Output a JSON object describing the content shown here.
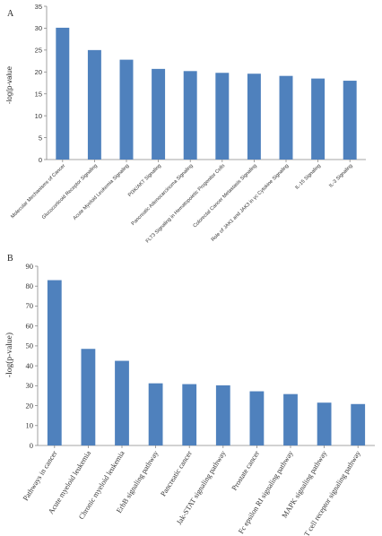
{
  "chart_data": [
    {
      "panel": "A",
      "type": "bar",
      "title": "",
      "xlabel": "",
      "ylabel": "-log(p-value",
      "ylim": [
        0,
        35
      ],
      "yticks": [
        0,
        5,
        10,
        15,
        20,
        25,
        30,
        35
      ],
      "grid": false,
      "bar_color": "#4f81bd",
      "categories": [
        "Molecular Mechanisms of Cancer",
        "Glucocorticoid Receptor Signaling",
        "Acute Myeloid Leukemia Signaling",
        "PI3K/AKT Signaling",
        "Pancreatic Adenocarcinoma Signaling",
        "FLT3 Signaling in Hematopoietic Progenitor Cells",
        "Colorectal Cancer Metastasis Signaling",
        "Role of JAK1 and JAK3 in γc Cytokine Signaling",
        "IL-15 Signaling",
        "IL-3 Signaling"
      ],
      "values": [
        30.1,
        25.0,
        22.8,
        20.7,
        20.2,
        19.8,
        19.6,
        19.1,
        18.5,
        18.0
      ]
    },
    {
      "panel": "B",
      "type": "bar",
      "title": "",
      "xlabel": "",
      "ylabel": "-log(p-value)",
      "ylim": [
        0,
        90
      ],
      "yticks": [
        0,
        10,
        20,
        30,
        40,
        50,
        60,
        70,
        80,
        90
      ],
      "grid": false,
      "bar_color": "#4f81bd",
      "categories": [
        "Pathways in cancer",
        "Acute myeloid leukemia",
        "Chronic myeloid leukemia",
        "ErbB signaling pathway",
        "Pancreatic cancer",
        "Jak-STAT signaling pathway",
        "Prostate cancer",
        "Fc epsilon RI signaling pathway",
        "MAPK signaling pathway",
        "T cell receptor signaling pathway"
      ],
      "values": [
        83.0,
        48.5,
        42.5,
        31.2,
        30.8,
        30.2,
        27.2,
        25.8,
        21.5,
        20.8
      ]
    }
  ]
}
